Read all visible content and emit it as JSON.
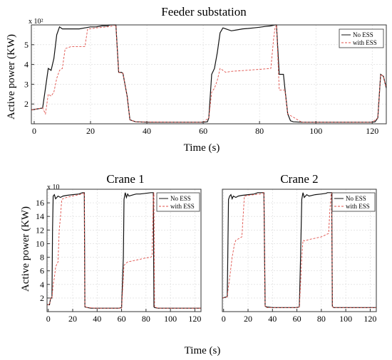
{
  "figure": {
    "shared_xlabel": "Time (s)",
    "shared_ylabel": "Active power (KW)"
  },
  "colors": {
    "no_ess": "#111111",
    "with_ess": "#e0504a",
    "grid": "#d9d9d9",
    "axis": "#333333"
  },
  "chart_data": [
    {
      "type": "line",
      "title": "Feeder substation",
      "xlabel": "Time (s)",
      "ylabel": "Active power (KW)",
      "multiplier": "x 10²",
      "xlim": [
        -1,
        125
      ],
      "ylim": [
        1,
        6
      ],
      "xticks": [
        0,
        20,
        40,
        60,
        80,
        100,
        120
      ],
      "yticks": [
        2,
        3,
        4,
        5
      ],
      "grid": true,
      "legend_position": "top-right",
      "series": [
        {
          "name": "No ESS",
          "style": "solid",
          "x": [
            -1,
            3,
            4,
            5,
            6,
            7,
            8,
            9,
            10,
            12,
            14,
            16,
            18,
            20,
            22,
            24,
            26,
            27,
            28,
            29,
            30,
            31,
            31.5,
            33,
            34,
            36,
            40,
            50,
            60,
            61.5,
            62,
            63,
            64,
            65,
            66,
            67,
            68,
            70,
            72,
            74,
            76,
            78,
            80,
            82,
            84,
            85.5,
            86,
            87,
            88.5,
            89,
            90,
            91,
            92,
            95,
            100,
            110,
            120,
            121,
            122,
            123,
            124,
            125
          ],
          "y": [
            1.7,
            1.8,
            2.8,
            3.8,
            3.7,
            4.3,
            5.5,
            5.9,
            5.8,
            5.8,
            5.8,
            5.8,
            5.85,
            5.9,
            5.9,
            5.95,
            5.95,
            6,
            6,
            6,
            3.6,
            3.6,
            3.55,
            2.4,
            1.2,
            1.1,
            1.08,
            1.08,
            1.08,
            1.1,
            1.3,
            3.5,
            3.8,
            4.6,
            5.6,
            5.85,
            5.8,
            5.7,
            5.75,
            5.8,
            5.82,
            5.85,
            5.88,
            5.92,
            5.95,
            6,
            6,
            3.5,
            3.5,
            2.8,
            1.5,
            1.15,
            1.1,
            1.08,
            1.08,
            1.08,
            1.08,
            1.1,
            1.3,
            3.5,
            3.4,
            2.8
          ]
        },
        {
          "name": "with ESS",
          "style": "dashed",
          "x": [
            -1,
            3,
            4,
            5,
            6,
            7,
            8,
            9,
            10,
            11,
            13,
            16,
            18,
            19,
            20,
            22,
            26,
            28,
            29,
            30,
            31.5,
            33,
            34,
            36,
            50,
            60,
            62,
            63,
            64,
            65,
            66,
            67,
            68,
            70,
            75,
            80,
            84,
            85,
            85.5,
            86,
            87,
            88.5,
            89,
            90,
            95,
            110,
            120,
            122,
            123,
            124,
            125
          ],
          "y": [
            1.7,
            1.8,
            1.5,
            2.5,
            2.4,
            2.6,
            3.3,
            3.7,
            3.8,
            4.8,
            4.9,
            4.9,
            4.9,
            5.8,
            5.8,
            5.85,
            5.9,
            5.95,
            6,
            3.6,
            3.55,
            2.4,
            1.2,
            1.1,
            1.08,
            1.08,
            1.3,
            2.6,
            2.8,
            3.2,
            3.8,
            3.7,
            3.6,
            3.65,
            3.7,
            3.75,
            3.8,
            5.3,
            5.85,
            6,
            2.7,
            2.7,
            2.7,
            1.5,
            1.08,
            1.08,
            1.08,
            1.3,
            3.5,
            3.4,
            2.8
          ]
        }
      ]
    },
    {
      "type": "line",
      "title": "Crane 1",
      "xlabel": "",
      "ylabel": "Active power (KW)",
      "multiplier": "x 10",
      "xlim": [
        -1,
        125
      ],
      "ylim": [
        0,
        18
      ],
      "xticks": [
        0,
        20,
        40,
        60,
        80,
        100,
        120
      ],
      "yticks": [
        2,
        4,
        6,
        8,
        10,
        12,
        14,
        16
      ],
      "grid": true,
      "legend_position": "top-right",
      "series": [
        {
          "name": "No ESS",
          "style": "solid",
          "x": [
            -1,
            1,
            2,
            3,
            3.5,
            4,
            5,
            6,
            8,
            10,
            12,
            15,
            20,
            25,
            28,
            29,
            29.5,
            30,
            32,
            35,
            40,
            50,
            58,
            60,
            61.5,
            62,
            63,
            64,
            65,
            66,
            68,
            70,
            72,
            75,
            80,
            84,
            85,
            86,
            86.5,
            87,
            90,
            100,
            110,
            120,
            125
          ],
          "y": [
            1,
            1,
            2,
            2,
            12,
            17,
            17.2,
            16.6,
            17,
            16.8,
            17,
            17.1,
            17.2,
            17.3,
            17.5,
            17.5,
            17.5,
            0.7,
            0.6,
            0.5,
            0.5,
            0.5,
            0.5,
            0.6,
            8,
            16.5,
            17.5,
            16.8,
            17.3,
            17,
            17.1,
            17.2,
            17.3,
            17.3,
            17.4,
            17.5,
            17.5,
            17.5,
            0.7,
            0.6,
            0.5,
            0.5,
            0.5,
            0.5,
            0.5
          ]
        },
        {
          "name": "with ESS",
          "style": "dashed",
          "x": [
            -1,
            1,
            2,
            3,
            4,
            5,
            6,
            7,
            8,
            9,
            10,
            11,
            12,
            15,
            20,
            25,
            28,
            29.5,
            30,
            32,
            40,
            60,
            61.5,
            62,
            63,
            65,
            70,
            75,
            80,
            84,
            85,
            86,
            86.5,
            87,
            90,
            100,
            120,
            125
          ],
          "y": [
            1,
            1,
            2,
            2,
            4,
            5,
            6.5,
            7,
            7.3,
            12,
            14,
            16.5,
            16.6,
            16.8,
            17,
            17.2,
            17.3,
            17.5,
            0.7,
            0.6,
            0.5,
            0.5,
            5,
            6.8,
            7,
            7.3,
            7.5,
            7.7,
            7.9,
            8,
            8.2,
            17,
            17.5,
            0.7,
            0.5,
            0.5,
            0.5,
            0.5
          ]
        }
      ]
    },
    {
      "type": "line",
      "title": "Crane 2",
      "xlabel": "",
      "ylabel": "",
      "multiplier": "",
      "xlim": [
        -1,
        125
      ],
      "ylim": [
        0,
        18
      ],
      "xticks": [
        0,
        20,
        40,
        60,
        80,
        100,
        120
      ],
      "yticks": [],
      "grid": true,
      "legend_position": "top-right",
      "series": [
        {
          "name": "No ESS",
          "style": "solid",
          "x": [
            -1,
            3,
            3.5,
            4,
            5,
            6,
            7,
            8,
            10,
            12,
            15,
            20,
            25,
            28,
            30,
            31,
            32,
            33,
            34,
            35,
            40,
            60,
            62,
            63,
            64,
            65,
            66,
            68,
            70,
            75,
            80,
            84,
            85,
            86,
            87,
            88,
            88.5,
            89,
            90,
            100,
            120,
            125
          ],
          "y": [
            2,
            2.2,
            9,
            16.5,
            17,
            17.2,
            16.6,
            17,
            16.8,
            17,
            17.1,
            17.2,
            17.3,
            17.5,
            17.5,
            17.5,
            17.5,
            17.5,
            0.8,
            0.7,
            0.6,
            0.6,
            0.7,
            8,
            16.5,
            17.5,
            16.8,
            17.2,
            17,
            17.2,
            17.3,
            17.4,
            17.5,
            17.5,
            17.5,
            17.5,
            17.5,
            0.8,
            0.6,
            0.6,
            0.6,
            0.6
          ]
        },
        {
          "name": "with ESS",
          "style": "dashed",
          "x": [
            -1,
            3,
            3.5,
            5,
            7,
            9,
            10,
            13,
            15,
            16,
            17,
            20,
            25,
            30,
            33,
            34,
            35,
            40,
            60,
            62,
            63,
            64,
            65,
            66,
            70,
            75,
            80,
            86,
            87,
            88,
            88.5,
            89,
            90,
            100,
            120,
            125
          ],
          "y": [
            2,
            2.2,
            3,
            5,
            8,
            10,
            10.5,
            10.8,
            11,
            14,
            17,
            17.1,
            17.2,
            17.3,
            17.5,
            0.8,
            0.6,
            0.6,
            0.6,
            0.7,
            4,
            8,
            10.5,
            10.4,
            10.6,
            10.8,
            11,
            11.5,
            15,
            17.3,
            17.5,
            0.8,
            0.6,
            0.6,
            0.6,
            0.6
          ]
        }
      ]
    }
  ]
}
